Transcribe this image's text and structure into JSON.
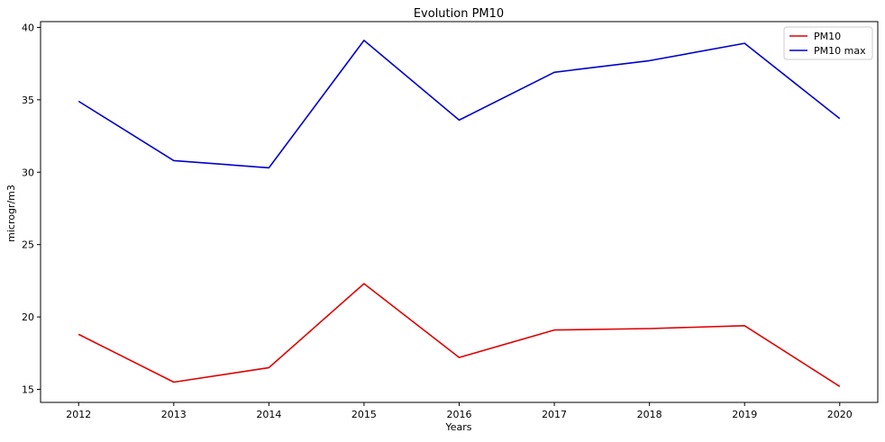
{
  "chart_data": {
    "type": "line",
    "title": "Evolution PM10",
    "xlabel": "Years",
    "ylabel": "microgr/m3",
    "x": [
      2012,
      2013,
      2014,
      2015,
      2016,
      2017,
      2018,
      2019,
      2020
    ],
    "x_tick_labels": [
      "2012",
      "2013",
      "2014",
      "2015",
      "2016",
      "2017",
      "2018",
      "2019",
      "2020"
    ],
    "y_ticks": [
      15,
      20,
      25,
      30,
      35,
      40
    ],
    "y_tick_labels": [
      "15",
      "20",
      "25",
      "30",
      "35",
      "40"
    ],
    "xlim": [
      2011.6,
      2020.4
    ],
    "ylim": [
      14.1,
      40.4
    ],
    "grid": false,
    "legend_position": "top-right",
    "series": [
      {
        "name": "PM10",
        "color": "#e00000",
        "values": [
          18.8,
          15.5,
          16.5,
          22.3,
          17.2,
          19.1,
          19.2,
          19.4,
          15.2
        ]
      },
      {
        "name": "PM10 max",
        "color": "#0000cc",
        "values": [
          34.9,
          30.8,
          30.3,
          39.1,
          33.6,
          36.9,
          37.7,
          38.9,
          33.7
        ]
      }
    ]
  }
}
